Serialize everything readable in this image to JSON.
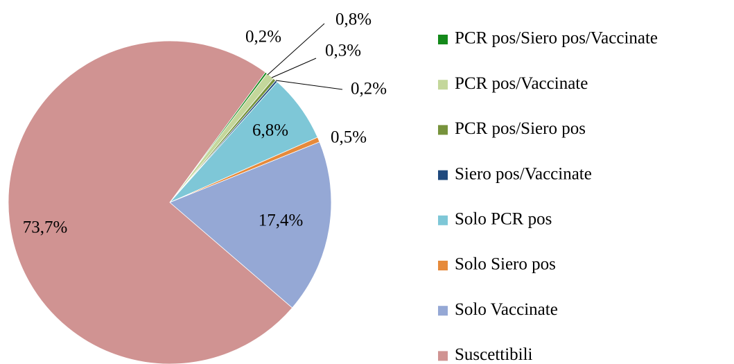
{
  "chart_data": {
    "type": "pie",
    "categories": [
      "PCR pos/Siero pos/Vaccinate",
      "PCR pos/Vaccinate",
      "PCR pos/Siero pos",
      "Siero pos/Vaccinate",
      "Solo PCR pos",
      "Solo Siero pos",
      "Solo Vaccinate",
      "Suscettibili"
    ],
    "values": [
      0.2,
      0.8,
      0.3,
      0.2,
      6.8,
      0.5,
      17.4,
      73.7
    ],
    "value_labels": [
      "0,2%",
      "0,8%",
      "0,3%",
      "0,2%",
      "6,8%",
      "0,5%",
      "17,4%",
      "73,7%"
    ],
    "colors": [
      "#14891a",
      "#c4d79b",
      "#77933c",
      "#1f497d",
      "#7ec7d7",
      "#e68a3b",
      "#95a8d5",
      "#d09392"
    ],
    "legend": "right"
  }
}
